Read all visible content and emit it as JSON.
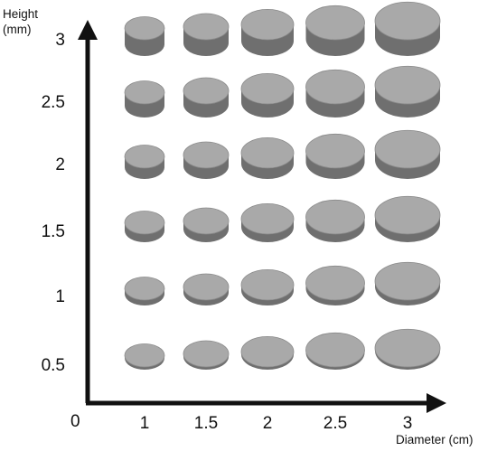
{
  "axes": {
    "y_title_line1": "Height",
    "y_title_line2": "(mm)",
    "x_title": "Diameter (cm)",
    "origin_label": "0"
  },
  "x_ticks": [
    "1",
    "1.5",
    "2",
    "2.5",
    "3"
  ],
  "y_ticks": [
    "0.5",
    "1",
    "1.5",
    "2",
    "2.5",
    "3"
  ],
  "diameters_cm": [
    1,
    1.5,
    2,
    2.5,
    3
  ],
  "heights_mm": [
    0.5,
    1,
    1.5,
    2,
    2.5,
    3
  ],
  "colors": {
    "axis": "#111111",
    "disc_top": "#a9a9a9",
    "disc_side": "#6f6f6f",
    "disc_edge": "#8a8a8a"
  }
}
